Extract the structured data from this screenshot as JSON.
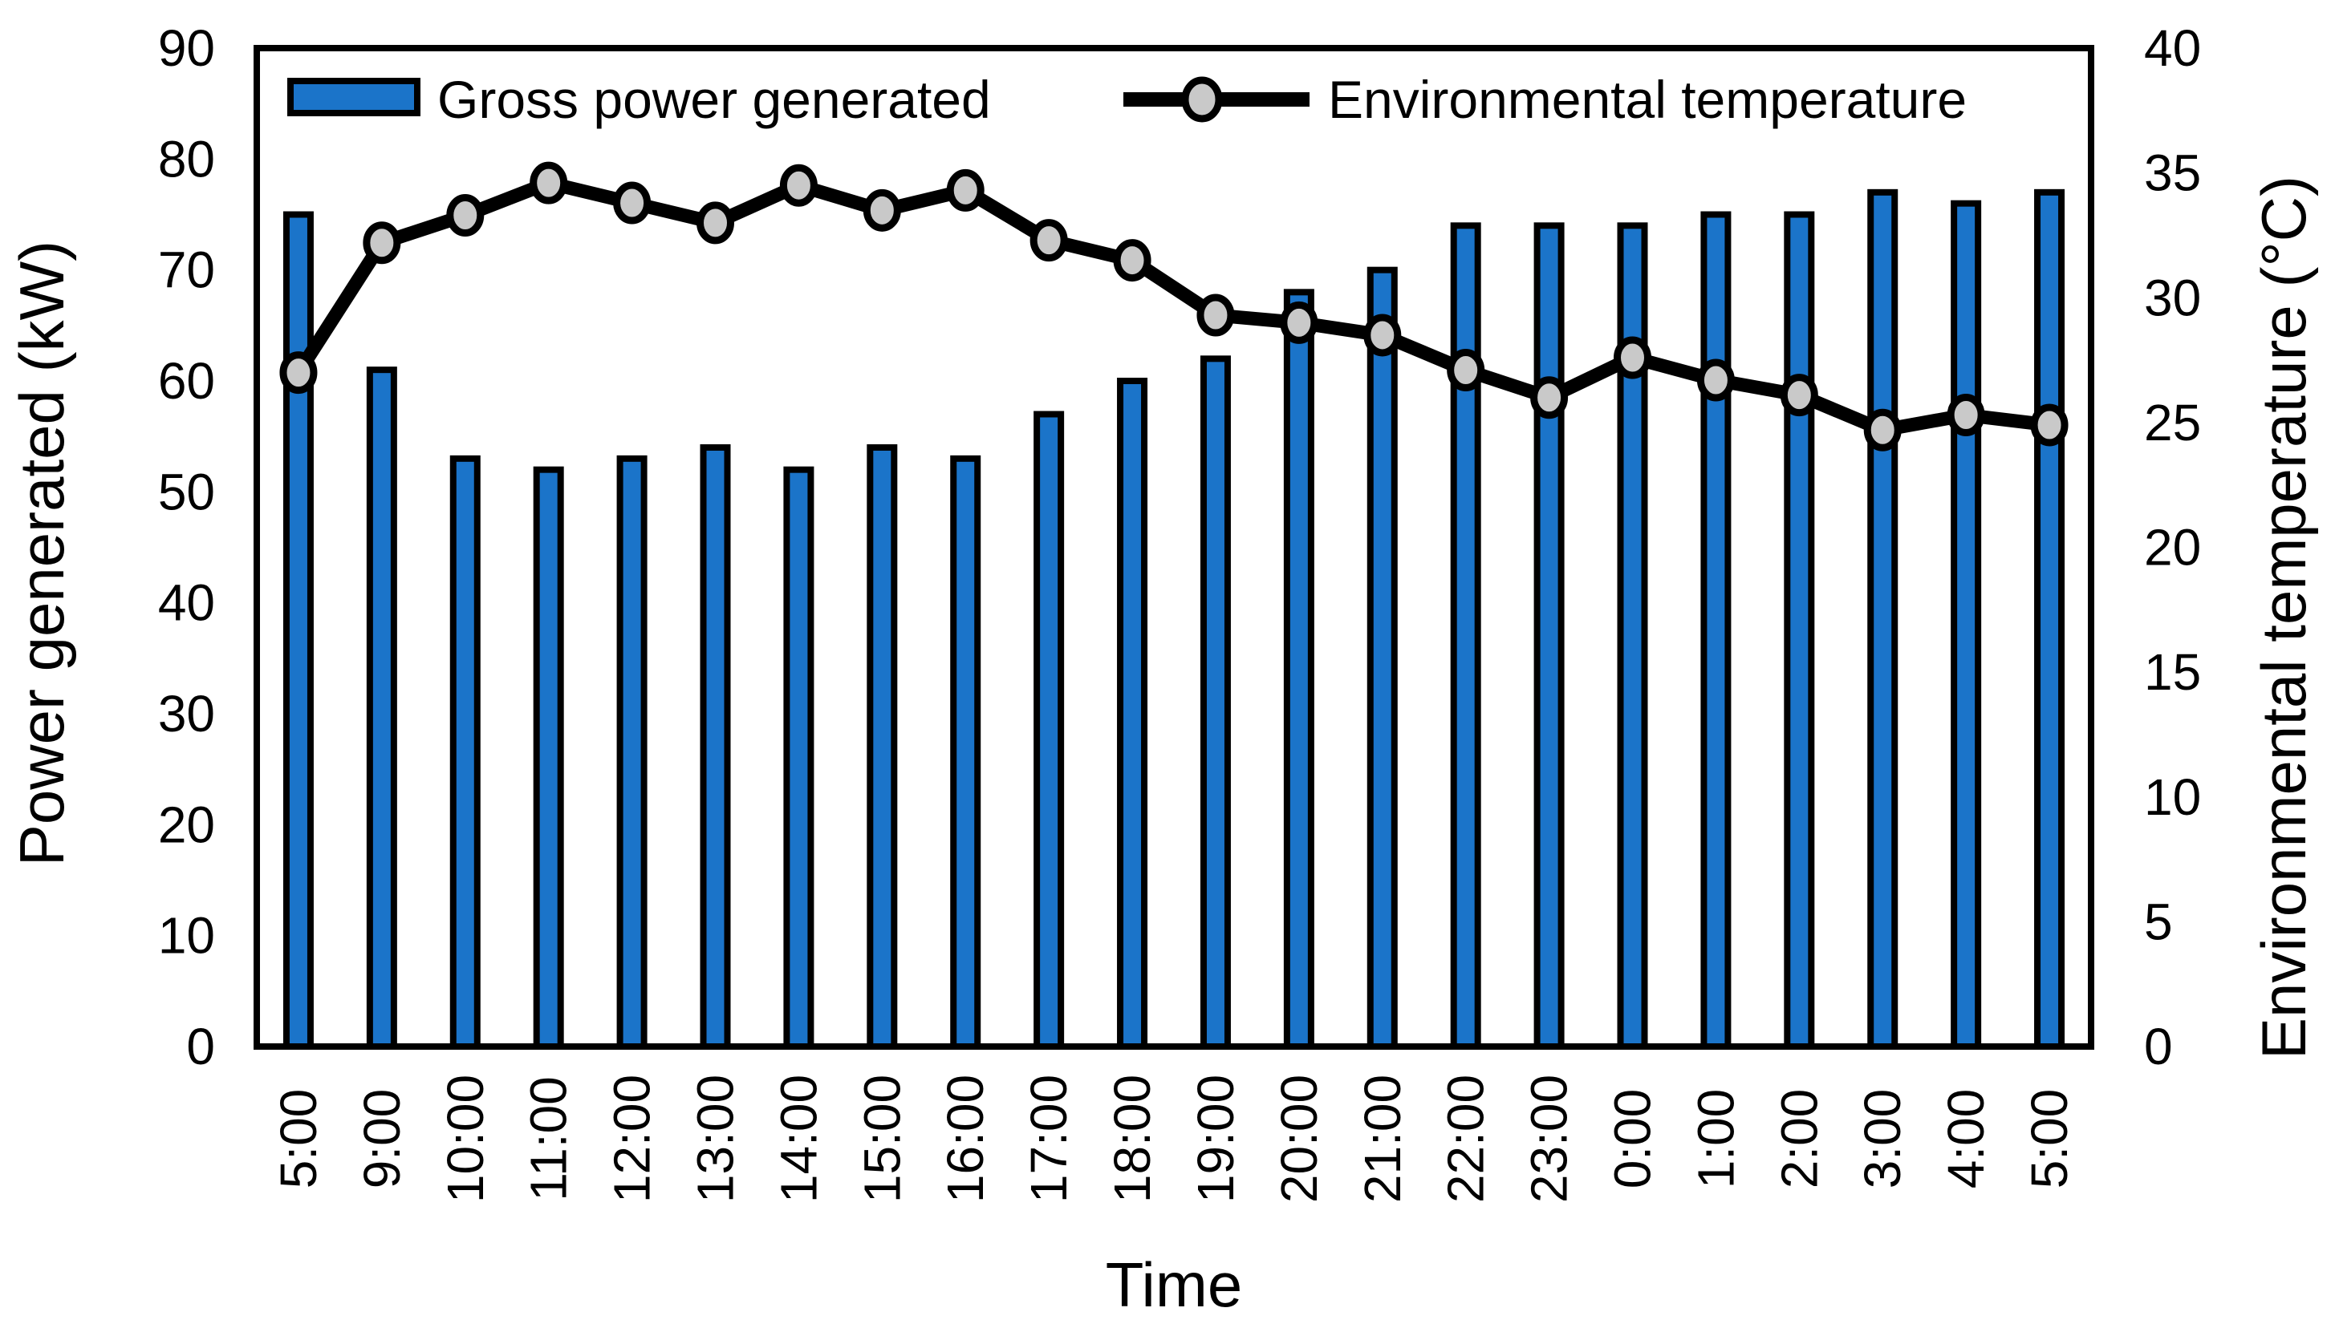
{
  "figure": {
    "background": "#ffffff",
    "frame_color": "#000000"
  },
  "legend": {
    "items": [
      {
        "label": "Gross power generated",
        "swatch": "bar"
      },
      {
        "label": "Environmental temperature",
        "swatch": "line-marker"
      }
    ]
  },
  "chart_data": {
    "type": "bar",
    "subtype": "bar+line-dual-axis",
    "title": "",
    "categories": [
      "5:00",
      "9:00",
      "10:00",
      "11:00",
      "12:00",
      "13:00",
      "14:00",
      "15:00",
      "16:00",
      "17:00",
      "18:00",
      "19:00",
      "20:00",
      "21:00",
      "22:00",
      "23:00",
      "0:00",
      "1:00",
      "2:00",
      "3:00",
      "4:00",
      "5:00"
    ],
    "series": [
      {
        "name": "Gross power generated",
        "type": "bar",
        "y_axis": "left",
        "color": "#1b74c9",
        "border_color": "#000000",
        "values": [
          75,
          61,
          53,
          52,
          53,
          54,
          52,
          54,
          53,
          57,
          60,
          62,
          68,
          70,
          74,
          74,
          74,
          75,
          75,
          77,
          76,
          77
        ]
      },
      {
        "name": "Environmental temperature",
        "type": "line",
        "y_axis": "right",
        "line_color": "#000000",
        "marker_fill": "#c9c9c9",
        "marker_stroke": "#000000",
        "values": [
          27.0,
          32.2,
          33.3,
          34.6,
          33.8,
          33.0,
          34.5,
          33.5,
          34.3,
          32.3,
          31.5,
          29.3,
          29.0,
          28.5,
          27.1,
          26.0,
          27.6,
          26.7,
          26.1,
          24.7,
          25.3,
          24.9
        ]
      }
    ],
    "x_axis": {
      "label": "Time",
      "tick_rotation_deg": -90
    },
    "left_axis": {
      "label": "Power generated (kW)",
      "min": 0,
      "max": 90,
      "step": 10,
      "ticks": [
        90,
        80,
        70,
        60,
        50,
        40,
        30,
        20,
        10,
        0
      ]
    },
    "right_axis": {
      "label": "Environmental temperature (°C)",
      "min": 0,
      "max": 40,
      "step": 5,
      "ticks": [
        40,
        35,
        30,
        25,
        20,
        15,
        10,
        5,
        0
      ]
    },
    "grid": false,
    "legend_position": "top-inside"
  }
}
